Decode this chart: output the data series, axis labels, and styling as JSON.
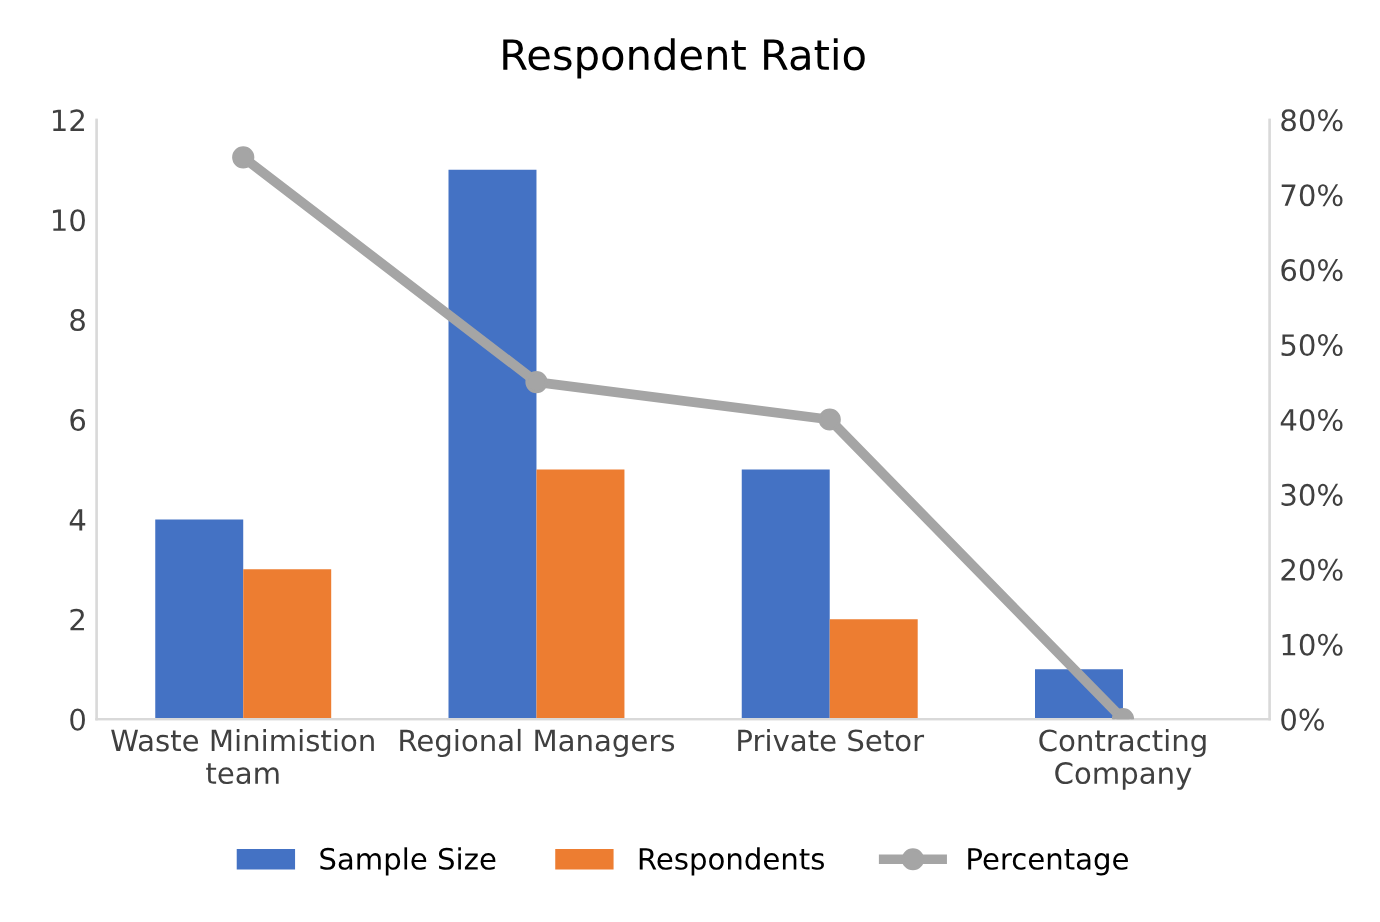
{
  "chart_data": {
    "type": "bar",
    "title": "Respondent Ratio",
    "categories": [
      "Waste Minimistion\nteam",
      "Regional Managers",
      "Private Setor",
      "Contracting\nCompany"
    ],
    "series": [
      {
        "name": "Sample Size",
        "color": "#4472c4",
        "values": [
          4,
          11,
          5,
          1
        ]
      },
      {
        "name": "Respondents",
        "color": "#ed7d31",
        "values": [
          3,
          5,
          2,
          0
        ]
      },
      {
        "name": "Percentage",
        "type": "line",
        "axis": "y2",
        "color": "#a5a5a5",
        "marker": "circle",
        "values": [
          75,
          45,
          40,
          0
        ]
      }
    ],
    "ylim": [
      0,
      12
    ],
    "yticks": [
      0,
      2,
      4,
      6,
      8,
      10,
      12
    ],
    "y2lim": [
      0,
      80
    ],
    "y2ticks": [
      {
        "value": 0,
        "label": "0%"
      },
      {
        "value": 10,
        "label": "10%"
      },
      {
        "value": 20,
        "label": "20%"
      },
      {
        "value": 30,
        "label": "30%"
      },
      {
        "value": 40,
        "label": "40%"
      },
      {
        "value": 50,
        "label": "50%"
      },
      {
        "value": 60,
        "label": "60%"
      },
      {
        "value": 70,
        "label": "70%"
      },
      {
        "value": 80,
        "label": "80%"
      }
    ],
    "grid": false,
    "legend": "bottom"
  }
}
